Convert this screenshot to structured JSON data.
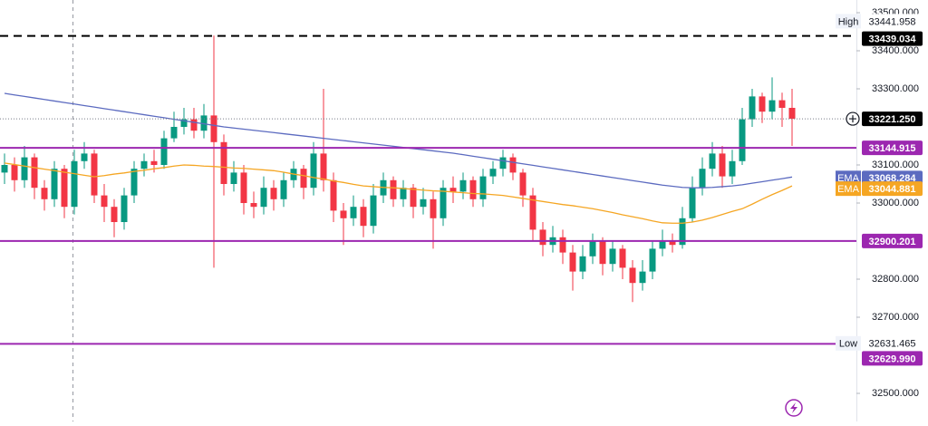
{
  "chart_data": {
    "type": "candlestick",
    "up_color": "#089981",
    "down_color": "#f23645",
    "open": [
      33080,
      33100,
      33060,
      33120,
      33040,
      33010,
      33090,
      32990,
      33110,
      33130,
      33020,
      32990,
      32950,
      33020,
      33090,
      33110,
      33100,
      33170,
      33200,
      33220,
      33190,
      33230,
      33160,
      33050,
      33080,
      33000,
      32990,
      33040,
      33010,
      33060,
      33090,
      33040,
      33130,
      33060,
      32980,
      32960,
      32990,
      32940,
      33020,
      33060,
      33010,
      33040,
      32990,
      33010,
      32960,
      33040,
      33030,
      33060,
      33010,
      33070,
      33090,
      33120,
      33080,
      33020,
      32930,
      32890,
      32910,
      32870,
      32820,
      32860,
      32900,
      32840,
      32880,
      32830,
      32790,
      32820,
      32880,
      32900,
      32890,
      32960,
      33040,
      33090,
      33130,
      33070,
      33110,
      33220,
      33280,
      33240,
      33270,
      33250
    ],
    "high": [
      33130,
      33120,
      33150,
      33130,
      33060,
      33110,
      33100,
      33140,
      33160,
      33140,
      33050,
      33010,
      33040,
      33110,
      33130,
      33140,
      33190,
      33240,
      33250,
      33250,
      33260,
      33440,
      33180,
      33110,
      33100,
      33030,
      33070,
      33060,
      33080,
      33110,
      33100,
      33160,
      33300,
      33080,
      33000,
      33020,
      33010,
      33050,
      33080,
      33070,
      33060,
      33050,
      33040,
      33030,
      33060,
      33070,
      33080,
      33070,
      33090,
      33110,
      33140,
      33130,
      33090,
      33040,
      32950,
      32940,
      32930,
      32890,
      32890,
      32920,
      32910,
      32900,
      32890,
      32850,
      32850,
      32900,
      32930,
      32920,
      32990,
      33070,
      33120,
      33160,
      33150,
      33140,
      33250,
      33300,
      33290,
      33330,
      33290,
      33300
    ],
    "low": [
      33050,
      33030,
      33040,
      33010,
      32980,
      32990,
      32960,
      32970,
      33090,
      33000,
      32950,
      32910,
      32930,
      33000,
      33070,
      33080,
      33090,
      33160,
      33180,
      33170,
      33170,
      32830,
      33020,
      33030,
      32970,
      32960,
      32970,
      32980,
      32990,
      33040,
      33010,
      33020,
      33030,
      32950,
      32890,
      32940,
      32910,
      32920,
      33000,
      32990,
      32990,
      32960,
      32970,
      32880,
      32940,
      33000,
      33010,
      32990,
      32990,
      33050,
      33070,
      33060,
      32990,
      32900,
      32860,
      32870,
      32840,
      32770,
      32800,
      32840,
      32810,
      32820,
      32800,
      32740,
      32770,
      32800,
      32860,
      32870,
      32880,
      32950,
      33020,
      33070,
      33040,
      33050,
      33100,
      33200,
      33210,
      33220,
      33200,
      33150
    ],
    "close": [
      33100,
      33060,
      33120,
      33040,
      33010,
      33090,
      32990,
      33110,
      33130,
      33020,
      32990,
      32950,
      33020,
      33090,
      33110,
      33100,
      33170,
      33200,
      33220,
      33190,
      33230,
      33160,
      33050,
      33080,
      33000,
      32990,
      33040,
      33010,
      33060,
      33090,
      33040,
      33130,
      33060,
      32980,
      32960,
      32990,
      32940,
      33020,
      33060,
      33010,
      33040,
      32990,
      33010,
      32960,
      33040,
      33030,
      33060,
      33010,
      33070,
      33090,
      33120,
      33080,
      33020,
      32930,
      32890,
      32910,
      32870,
      32820,
      32860,
      32900,
      32840,
      32880,
      32830,
      32790,
      32820,
      32880,
      32900,
      32890,
      32960,
      33040,
      33090,
      33130,
      33070,
      33110,
      33220,
      33280,
      33240,
      33270,
      33250,
      33221.25
    ],
    "series": [
      {
        "name": "EMA",
        "color": "#5c6bc0",
        "values": [
          33288,
          33284,
          33280,
          33276,
          33272,
          33268,
          33264,
          33260,
          33256,
          33252,
          33248,
          33244,
          33240,
          33236,
          33232,
          33228,
          33224,
          33220,
          33216,
          33212,
          33208,
          33204,
          33200,
          33197,
          33194,
          33191,
          33188,
          33185,
          33182,
          33179,
          33176,
          33173,
          33170,
          33167,
          33164,
          33161,
          33158,
          33155,
          33152,
          33149,
          33146,
          33143,
          33140,
          33137,
          33134,
          33131,
          33127,
          33123,
          33119,
          33115,
          33111,
          33107,
          33103,
          33099,
          33095,
          33091,
          33087,
          33083,
          33079,
          33075,
          33071,
          33067,
          33063,
          33059,
          33055,
          33051,
          33047,
          33044,
          33041,
          33040,
          33040,
          33041,
          33043,
          33045,
          33048,
          33052,
          33056,
          33060,
          33064,
          33068.284
        ]
      },
      {
        "name": "EMA",
        "color": "#f5a623",
        "values": [
          33105,
          33101,
          33097,
          33093,
          33089,
          33085,
          33081,
          33077,
          33073,
          33069,
          33072,
          33076,
          33079,
          33083,
          33086,
          33090,
          33093,
          33097,
          33100,
          33099,
          33097,
          33096,
          33094,
          33092,
          33091,
          33089,
          33087,
          33085,
          33081,
          33076,
          33072,
          33067,
          33063,
          33058,
          33054,
          33049,
          33045,
          33043,
          33041,
          33040,
          33038,
          33036,
          33034,
          33032,
          33031,
          33029,
          33027,
          33025,
          33024,
          33022,
          33020,
          33016,
          33012,
          33008,
          33004,
          33000,
          32996,
          32993,
          32989,
          32985,
          32980,
          32975,
          32969,
          32964,
          32959,
          32953,
          32948,
          32947,
          32947,
          32950,
          32955,
          32962,
          32970,
          32978,
          32985,
          32997,
          33010,
          33022,
          33033,
          33044.881
        ]
      }
    ],
    "ylim": [
      32426.2,
      33533.3
    ],
    "yticks": [
      {
        "value": 33500,
        "label": "33500.000"
      },
      {
        "value": 33400,
        "label": "33400.000"
      },
      {
        "value": 33300,
        "label": "33300.000"
      },
      {
        "value": 33100,
        "label": "33100.000"
      },
      {
        "value": 33000,
        "label": "33000.000"
      },
      {
        "value": 32800,
        "label": "32800.000"
      },
      {
        "value": 32700,
        "label": "32700.000"
      },
      {
        "value": 32500,
        "label": "32500.000"
      }
    ],
    "levels": [
      {
        "value": 33439.034,
        "label": "33439.034",
        "color": "#000000",
        "style": "dashed"
      },
      {
        "value": 33144.915,
        "label": "33144.915",
        "color": "#9c27b0",
        "style": "solid"
      },
      {
        "value": 32900.201,
        "label": "32900.201",
        "color": "#9c27b0",
        "style": "solid"
      },
      {
        "value": 32629.99,
        "label": "32629.990",
        "color": "#9c27b0",
        "style": "solid"
      },
      {
        "value": 33221.25,
        "label": "33221.250",
        "color": "#000000",
        "style": "dotted"
      }
    ],
    "high_marker": {
      "label": "High",
      "value": 33441.958,
      "value_label": "33441.958"
    },
    "low_marker": {
      "label": "Low",
      "value": 32631.465,
      "value_label": "32631.465"
    }
  }
}
